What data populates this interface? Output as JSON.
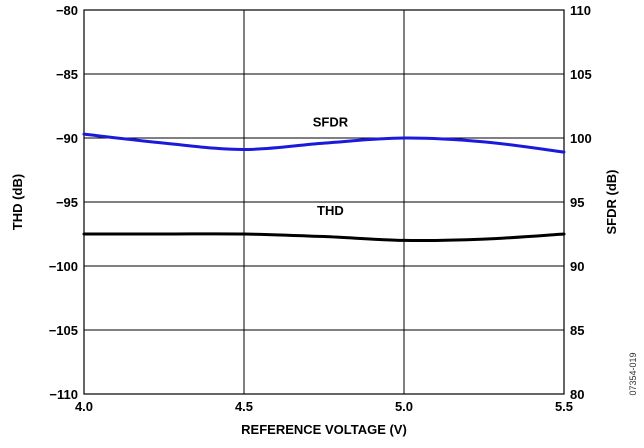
{
  "chart_data": {
    "type": "line",
    "title": "",
    "xlabel": "REFERENCE VOLTAGE (V)",
    "ylabel_left": "THD (dB)",
    "ylabel_right": "SFDR (dB)",
    "xlim": [
      4.0,
      5.5
    ],
    "ylim_left": [
      -110,
      -80
    ],
    "ylim_right": [
      80,
      110
    ],
    "grid": true,
    "x_ticks": [
      "4.0",
      "4.5",
      "5.0",
      "5.5"
    ],
    "y_left_ticks": [
      "−110",
      "−105",
      "−100",
      "−95",
      "−90",
      "−85",
      "−80"
    ],
    "y_right_ticks": [
      "80",
      "85",
      "90",
      "95",
      "100",
      "105",
      "110"
    ],
    "series": [
      {
        "name": "SFDR",
        "axis": "right",
        "color": "#1a1adc",
        "x": [
          4.0,
          4.25,
          4.5,
          4.75,
          5.0,
          5.25,
          5.5
        ],
        "y": [
          100.3,
          99.6,
          99.1,
          99.6,
          100.0,
          99.7,
          98.9
        ]
      },
      {
        "name": "THD",
        "axis": "left",
        "color": "#000000",
        "x": [
          4.0,
          4.25,
          4.5,
          4.75,
          5.0,
          5.25,
          5.5
        ],
        "y": [
          -97.5,
          -97.5,
          -97.5,
          -97.7,
          -98.0,
          -97.9,
          -97.5
        ]
      }
    ],
    "annotation": "07354-019"
  }
}
